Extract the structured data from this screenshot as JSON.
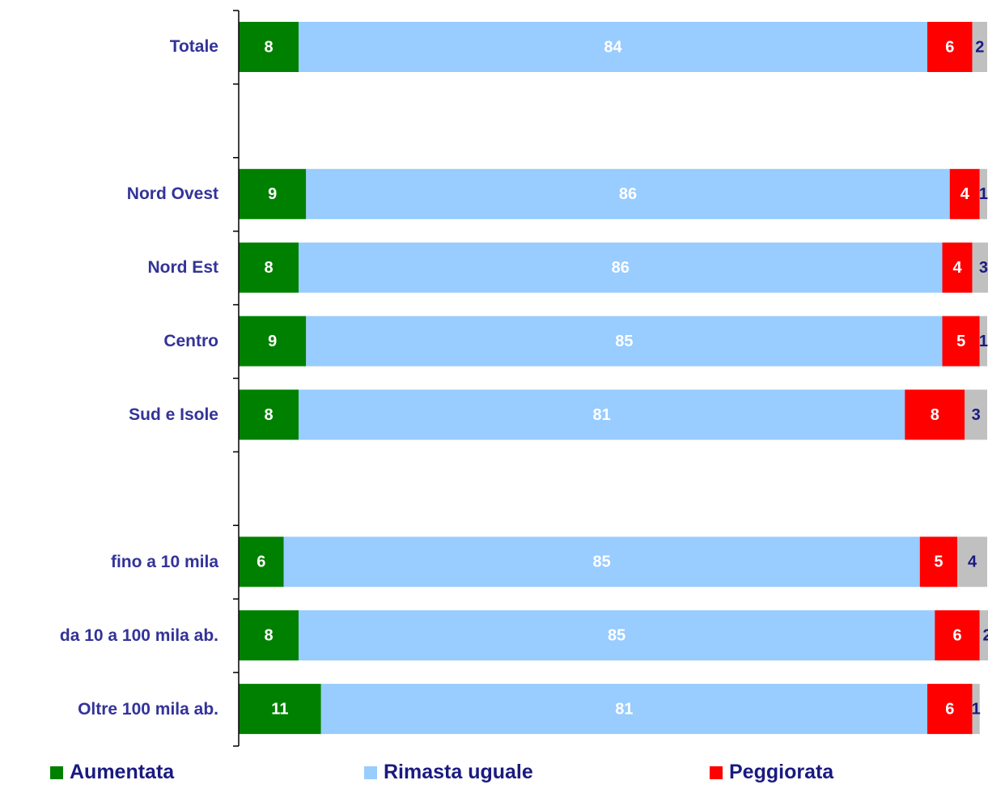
{
  "chart_data": {
    "type": "stacked-bar-horizontal",
    "categories": [
      "Totale",
      null,
      "Nord Ovest",
      "Nord Est",
      "Centro",
      "Sud e Isole",
      null,
      "fino a 10 mila",
      "da 10 a 100 mila ab.",
      "Oltre 100 mila ab."
    ],
    "series": [
      {
        "name": "Aumentata",
        "color": "#008000",
        "values": [
          8,
          null,
          9,
          8,
          9,
          8,
          null,
          6,
          8,
          11
        ]
      },
      {
        "name": "Rimasta uguale",
        "color": "#99ccff",
        "values": [
          84,
          null,
          86,
          86,
          85,
          81,
          null,
          85,
          85,
          81
        ]
      },
      {
        "name": "Peggiorata",
        "color": "#ff0000",
        "values": [
          6,
          null,
          4,
          4,
          5,
          8,
          null,
          5,
          6,
          6
        ]
      },
      {
        "color": "#c0c0c0",
        "values": [
          2,
          null,
          1,
          3,
          1,
          3,
          null,
          4,
          2,
          1
        ]
      }
    ],
    "xlim": [
      0,
      100
    ]
  }
}
